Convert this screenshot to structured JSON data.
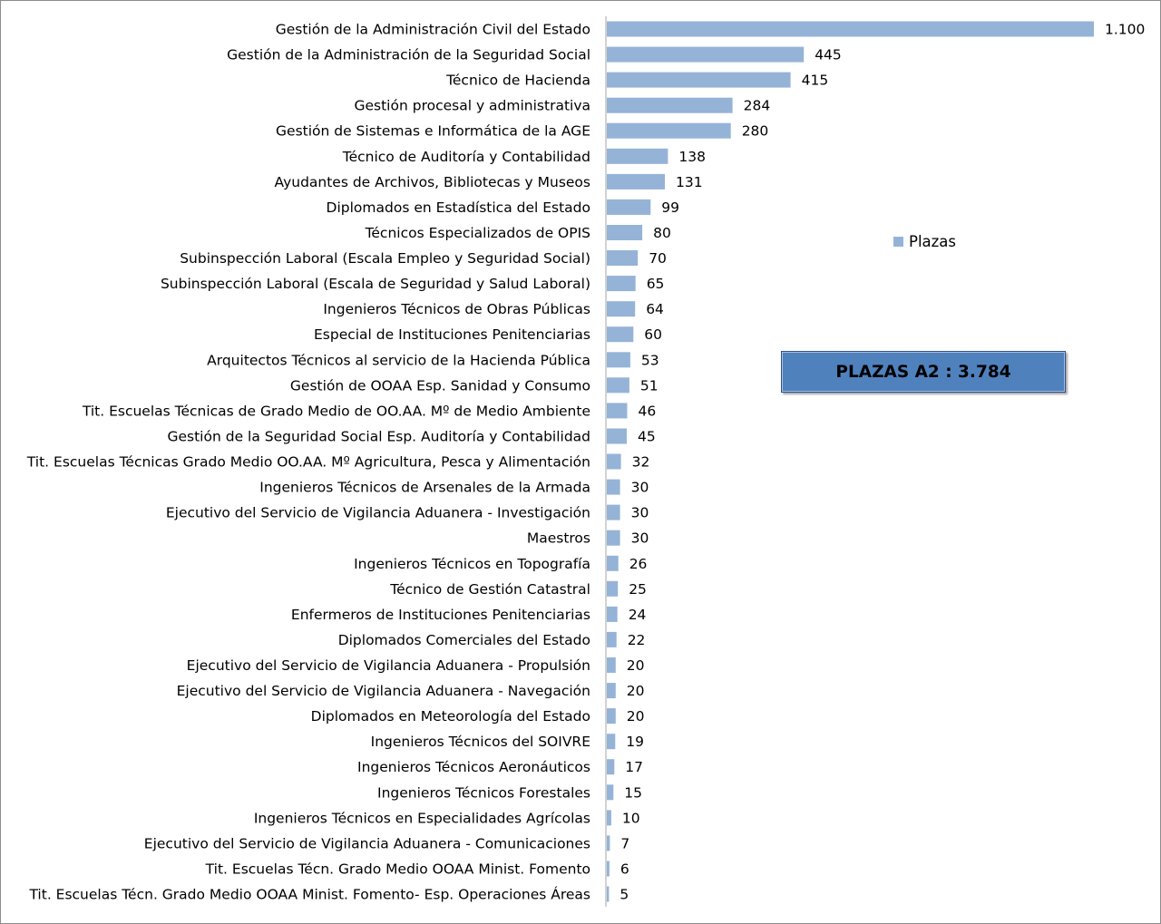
{
  "chart_data": {
    "type": "bar",
    "orientation": "horizontal",
    "title": "",
    "xlabel": "",
    "ylabel": "",
    "bar_color": "#95b3d7",
    "legend": {
      "position": "right",
      "entries": [
        "Plazas"
      ]
    },
    "grid": false,
    "xlim": [
      0,
      1100
    ],
    "categories": [
      "Gestión de la Administración Civil del Estado",
      "Gestión de la Administración de la Seguridad Social",
      "Técnico de Hacienda",
      "Gestión procesal y administrativa",
      "Gestión de Sistemas e Informática de la AGE",
      "Técnico de Auditoría y Contabilidad",
      "Ayudantes de Archivos, Bibliotecas y Museos",
      "Diplomados en Estadística del Estado",
      "Técnicos Especializados de OPIS",
      "Subinspección Laboral (Escala Empleo y Seguridad Social)",
      "Subinspección Laboral (Escala de Seguridad y Salud Laboral)",
      "Ingenieros Técnicos de Obras Públicas",
      "Especial de  Instituciones Penitenciarias",
      "Arquitectos Técnicos al servicio de la Hacienda Pública",
      "Gestión de OOAA Esp. Sanidad y Consumo",
      "Tit. Escuelas Técnicas de Grado Medio de OO.AA. Mº de Medio Ambiente",
      "Gestión de la Seguridad Social Esp. Auditoría y Contabilidad",
      "Tit. Escuelas Técnicas Grado Medio OO.AA. Mº Agricultura, Pesca y Alimentación",
      "Ingenieros Técnicos de Arsenales de la Armada",
      "Ejecutivo del Servicio de Vigilancia Aduanera - Investigación",
      "Maestros",
      "Ingenieros Técnicos en Topografía",
      "Técnico de Gestión Catastral",
      "Enfermeros de Instituciones Penitenciarias",
      "Diplomados Comerciales del Estado",
      "Ejecutivo del Servicio de Vigilancia Aduanera - Propulsión",
      "Ejecutivo del Servicio de Vigilancia Aduanera - Navegación",
      "Diplomados en Meteorología del Estado",
      "Ingenieros Técnicos del SOIVRE",
      "Ingenieros Técnicos Aeronáuticos",
      "Ingenieros Técnicos Forestales",
      "Ingenieros Técnicos en Especialidades Agrícolas",
      "Ejecutivo del Servicio de Vigilancia Aduanera - Comunicaciones",
      "Tit. Escuelas Técn. Grado Medio OOAA Minist. Fomento",
      "Tit. Escuelas Técn. Grado Medio OOAA Minist. Fomento- Esp. Operaciones Áreas"
    ],
    "series": [
      {
        "name": "Plazas",
        "values": [
          1100,
          445,
          415,
          284,
          280,
          138,
          131,
          99,
          80,
          70,
          65,
          64,
          60,
          53,
          51,
          46,
          45,
          32,
          30,
          30,
          30,
          26,
          25,
          24,
          22,
          20,
          20,
          20,
          19,
          17,
          15,
          10,
          7,
          6,
          5
        ],
        "labels": [
          "1.100",
          "445",
          "415",
          "284",
          "280",
          "138",
          "131",
          "99",
          "80",
          "70",
          "65",
          "64",
          "60",
          "53",
          "51",
          "46",
          "45",
          "32",
          "30",
          "30",
          "30",
          "26",
          "25",
          "24",
          "22",
          "20",
          "20",
          "20",
          "19",
          "17",
          "15",
          "10",
          "7",
          "6",
          "5"
        ]
      }
    ],
    "annotation": {
      "text": "PLAZAS A2 :  3.784",
      "box_color": "#4f81bd",
      "border_color": "#2f528f"
    }
  }
}
